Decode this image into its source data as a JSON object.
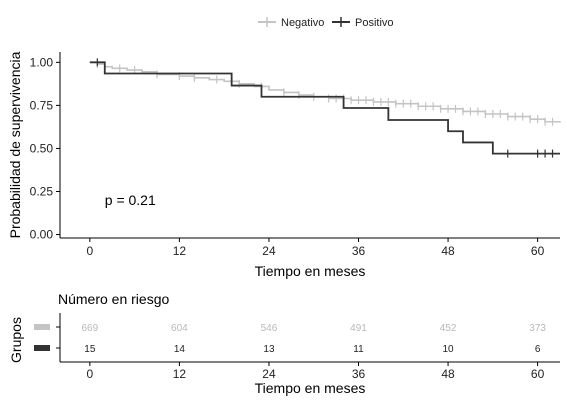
{
  "chart_data": {
    "type": "line",
    "subtype": "kaplan-meier",
    "ylabel": "Probabilidad de supervivencia",
    "xlabel": "Tiempo en meses",
    "xlim": [
      -4,
      63
    ],
    "ylim": [
      -0.02,
      1.06
    ],
    "xticks": [
      0,
      12,
      24,
      36,
      48,
      60
    ],
    "yticks": [
      0.0,
      0.25,
      0.5,
      0.75,
      1.0
    ],
    "ytick_labels": [
      "0.00",
      "0.25",
      "0.50",
      "0.75",
      "1.00"
    ],
    "grid": false,
    "legend_position": "top",
    "pvalue_text": "p = 0.21",
    "pvalue_at": {
      "x": 2,
      "y": 0.2
    },
    "series": [
      {
        "name": "Negativo",
        "color": "#c4c4c4",
        "steps": [
          [
            0,
            1.0
          ],
          [
            1,
            0.99
          ],
          [
            2,
            0.975
          ],
          [
            3,
            0.965
          ],
          [
            5,
            0.955
          ],
          [
            7,
            0.945
          ],
          [
            9,
            0.93
          ],
          [
            12,
            0.92
          ],
          [
            14,
            0.91
          ],
          [
            16,
            0.9
          ],
          [
            18,
            0.89
          ],
          [
            20,
            0.875
          ],
          [
            22,
            0.86
          ],
          [
            24,
            0.84
          ],
          [
            26,
            0.825
          ],
          [
            28,
            0.81
          ],
          [
            30,
            0.8
          ],
          [
            32,
            0.79
          ],
          [
            35,
            0.78
          ],
          [
            38,
            0.77
          ],
          [
            41,
            0.76
          ],
          [
            44,
            0.745
          ],
          [
            47,
            0.73
          ],
          [
            50,
            0.715
          ],
          [
            53,
            0.7
          ],
          [
            56,
            0.685
          ],
          [
            59,
            0.67
          ],
          [
            61,
            0.655
          ],
          [
            63,
            0.65
          ]
        ],
        "censor_x": [
          1,
          2,
          4,
          6,
          9,
          12,
          14,
          17,
          20,
          23,
          26,
          28,
          30,
          32,
          33,
          34,
          35,
          36,
          37,
          38,
          39,
          40,
          41,
          42,
          43,
          44,
          45,
          46,
          47,
          48,
          49,
          50,
          51,
          52,
          53,
          54,
          55,
          56,
          57,
          58,
          59,
          60,
          61,
          62
        ]
      },
      {
        "name": "Positivo",
        "color": "#333333",
        "steps": [
          [
            0,
            1.0
          ],
          [
            2,
            0.935
          ],
          [
            19,
            0.865
          ],
          [
            23,
            0.8
          ],
          [
            34,
            0.735
          ],
          [
            40,
            0.665
          ],
          [
            48,
            0.6
          ],
          [
            50,
            0.535
          ],
          [
            54,
            0.47
          ],
          [
            63,
            0.47
          ]
        ],
        "censor_x": [
          1,
          56,
          60,
          61,
          62
        ]
      }
    ]
  },
  "risk_table": {
    "title": "Número en riesgo",
    "ylabel": "Grupos",
    "xlabel": "Tiempo en meses",
    "times": [
      0,
      12,
      24,
      36,
      48,
      60
    ],
    "rows": [
      {
        "group": "Negativo",
        "color": "#c4c4c4",
        "values": [
          "669",
          "604",
          "546",
          "491",
          "452",
          "373"
        ]
      },
      {
        "group": "Positivo",
        "color": "#333333",
        "values": [
          "15",
          "14",
          "13",
          "11",
          "10",
          "6"
        ]
      }
    ]
  }
}
